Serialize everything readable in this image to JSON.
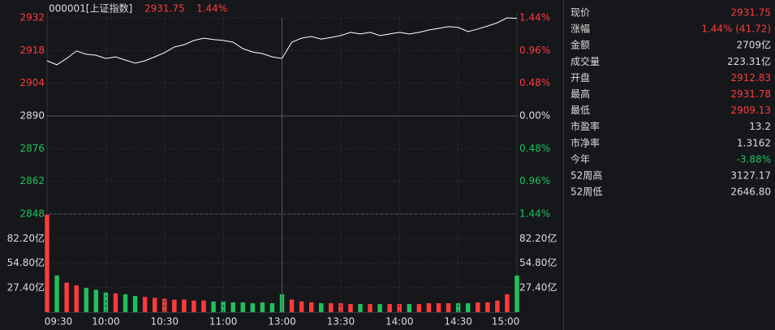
{
  "chart_data": [
    {
      "type": "line",
      "title": "000001[上证指数]",
      "last_price": "2931.75",
      "change_pct": "1.44%",
      "color": "#ffffff",
      "up_color": "#ff3b3b",
      "down_color": "#1fc25a",
      "flat_color": "#dddddd",
      "grid": true,
      "categories": [
        "09:30",
        "09:35",
        "09:40",
        "09:45",
        "09:50",
        "09:55",
        "10:00",
        "10:05",
        "10:10",
        "10:15",
        "10:20",
        "10:25",
        "10:30",
        "10:35",
        "10:40",
        "10:45",
        "10:50",
        "10:55",
        "11:00",
        "11:05",
        "11:10",
        "11:15",
        "11:20",
        "11:25",
        "13:00",
        "13:05",
        "13:10",
        "13:15",
        "13:20",
        "13:25",
        "13:30",
        "13:35",
        "13:40",
        "13:45",
        "13:50",
        "13:55",
        "14:00",
        "14:05",
        "14:10",
        "14:15",
        "14:20",
        "14:25",
        "14:30",
        "14:35",
        "14:40",
        "14:45",
        "14:50",
        "14:55",
        "15:00"
      ],
      "values": [
        2913.6,
        2911.9,
        2914.6,
        2917.8,
        2916.4,
        2916.0,
        2914.6,
        2915.3,
        2913.9,
        2912.6,
        2913.6,
        2915.3,
        2917.1,
        2919.5,
        2920.5,
        2922.3,
        2923.3,
        2922.7,
        2922.3,
        2921.6,
        2918.8,
        2917.4,
        2916.7,
        2915.3,
        2914.6,
        2921.6,
        2923.3,
        2924.0,
        2922.9,
        2923.6,
        2924.4,
        2925.8,
        2925.1,
        2925.8,
        2924.4,
        2925.1,
        2925.8,
        2925.1,
        2925.8,
        2926.8,
        2927.5,
        2928.2,
        2927.9,
        2926.1,
        2927.2,
        2928.5,
        2929.9,
        2932.0,
        2931.75
      ],
      "ylim": [
        2848,
        2932
      ],
      "yticks": [
        2932,
        2918,
        2904,
        2890,
        2876,
        2862,
        2848
      ],
      "y2lim": [
        -1.44,
        1.44
      ],
      "y2ticks": [
        {
          "value": 1.44,
          "label": "1.44%"
        },
        {
          "value": 0.96,
          "label": "0.96%"
        },
        {
          "value": 0.48,
          "label": "0.48%"
        },
        {
          "value": 0,
          "label": "0.00%"
        },
        {
          "value": -0.48,
          "label": "0.48%"
        },
        {
          "value": -0.96,
          "label": "0.96%"
        },
        {
          "value": -1.44,
          "label": "1.44%"
        }
      ]
    },
    {
      "type": "bar",
      "grid": true,
      "categories": [
        "09:30",
        "09:35",
        "09:40",
        "09:45",
        "09:50",
        "09:55",
        "10:00",
        "10:05",
        "10:10",
        "10:15",
        "10:20",
        "10:25",
        "10:30",
        "10:35",
        "10:40",
        "10:45",
        "10:50",
        "10:55",
        "11:00",
        "11:05",
        "11:10",
        "11:15",
        "11:20",
        "11:25",
        "13:00",
        "13:05",
        "13:10",
        "13:15",
        "13:20",
        "13:25",
        "13:30",
        "13:35",
        "13:40",
        "13:45",
        "13:50",
        "13:55",
        "14:00",
        "14:05",
        "14:10",
        "14:15",
        "14:20",
        "14:25",
        "14:30",
        "14:35",
        "14:40",
        "14:45",
        "14:50",
        "14:55",
        "15:00"
      ],
      "values": [
        109,
        41,
        33,
        30,
        27,
        25,
        22,
        21,
        20,
        18,
        17,
        16,
        15,
        14,
        14,
        13,
        13,
        12,
        12,
        11,
        11,
        10,
        11,
        10,
        20,
        14,
        12,
        11,
        10,
        10,
        10,
        9,
        9,
        9,
        9,
        9,
        9,
        9,
        9,
        10,
        10,
        10,
        10,
        10,
        11,
        11,
        13,
        20,
        41
      ],
      "colors": [
        "#ff3b3b",
        "#1fc25a",
        "#ff3b3b",
        "#ff3b3b",
        "#1fc25a",
        "#1fc25a",
        "#1fc25a",
        "#ff3b3b",
        "#1fc25a",
        "#1fc25a",
        "#ff3b3b",
        "#ff3b3b",
        "#ff3b3b",
        "#ff3b3b",
        "#ff3b3b",
        "#ff3b3b",
        "#ff3b3b",
        "#1fc25a",
        "#1fc25a",
        "#1fc25a",
        "#1fc25a",
        "#1fc25a",
        "#1fc25a",
        "#1fc25a",
        "#1fc25a",
        "#ff3b3b",
        "#ff3b3b",
        "#ff3b3b",
        "#1fc25a",
        "#ff3b3b",
        "#ff3b3b",
        "#ff3b3b",
        "#1fc25a",
        "#ff3b3b",
        "#1fc25a",
        "#ff3b3b",
        "#ff3b3b",
        "#1fc25a",
        "#ff3b3b",
        "#ff3b3b",
        "#ff3b3b",
        "#ff3b3b",
        "#1fc25a",
        "#1fc25a",
        "#ff3b3b",
        "#ff3b3b",
        "#ff3b3b",
        "#ff3b3b",
        "#1fc25a"
      ],
      "ylim": [
        0,
        109.6
      ],
      "yticks": [
        {
          "value": 82.2,
          "label": "82.20亿"
        },
        {
          "value": 54.8,
          "label": "54.80亿"
        },
        {
          "value": 27.4,
          "label": "27.40亿"
        }
      ],
      "xticks": [
        "09:30",
        "10:00",
        "10:30",
        "11:00",
        "13:00",
        "13:30",
        "14:00",
        "14:30",
        "15:00"
      ]
    }
  ],
  "info_panel": {
    "rows": [
      {
        "label": "现价",
        "value": "2931.75",
        "color": "#ff3b3b"
      },
      {
        "label": "涨幅",
        "value": "1.44% (41.72)",
        "color": "#ff3b3b"
      },
      {
        "label": "金额",
        "value": "2709亿",
        "color": "#dddddd"
      },
      {
        "label": "成交量",
        "value": "223.31亿",
        "color": "#dddddd"
      },
      {
        "label": "开盘",
        "value": "2912.83",
        "color": "#ff3b3b"
      },
      {
        "label": "最高",
        "value": "2931.78",
        "color": "#ff3b3b"
      },
      {
        "label": "最低",
        "value": "2909.13",
        "color": "#ff3b3b"
      },
      {
        "label": "市盈率",
        "value": "13.2",
        "color": "#dddddd"
      },
      {
        "label": "市净率",
        "value": "1.3162",
        "color": "#dddddd"
      },
      {
        "label": "今年",
        "value": "-3.88%",
        "color": "#1fc25a"
      },
      {
        "label": "52周高",
        "value": "3127.17",
        "color": "#dddddd"
      },
      {
        "label": "52周低",
        "value": "2646.80",
        "color": "#dddddd"
      }
    ]
  }
}
